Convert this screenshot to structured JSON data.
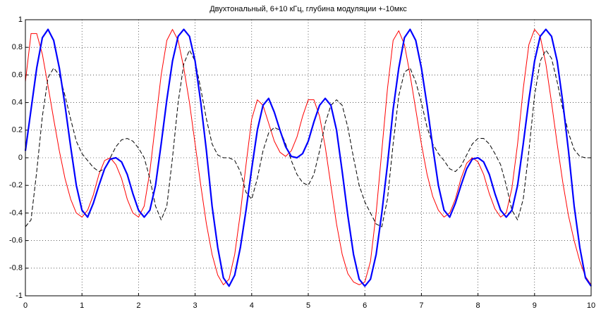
{
  "chart_data": {
    "type": "line",
    "title": "Двухтональный, 6+10 кГц, глубина модуляции +-10мкс",
    "x": [
      0,
      0.1,
      0.2,
      0.3,
      0.4,
      0.5,
      0.6,
      0.7,
      0.8,
      0.9,
      1,
      1.1,
      1.2,
      1.3,
      1.4,
      1.5,
      1.6,
      1.7,
      1.8,
      1.9,
      2,
      2.1,
      2.2,
      2.3,
      2.4,
      2.5,
      2.6,
      2.7,
      2.8,
      2.9,
      3,
      3.1,
      3.2,
      3.3,
      3.4,
      3.5,
      3.6,
      3.7,
      3.8,
      3.9,
      4,
      4.1,
      4.2,
      4.3,
      4.4,
      4.5,
      4.6,
      4.7,
      4.8,
      4.9,
      5,
      5.1,
      5.2,
      5.3,
      5.4,
      5.5,
      5.6,
      5.7,
      5.8,
      5.9,
      6,
      6.1,
      6.2,
      6.3,
      6.4,
      6.5,
      6.6,
      6.7,
      6.8,
      6.9,
      7,
      7.1,
      7.2,
      7.3,
      7.4,
      7.5,
      7.6,
      7.7,
      7.8,
      7.9,
      8,
      8.1,
      8.2,
      8.3,
      8.4,
      8.5,
      8.6,
      8.7,
      8.8,
      8.9,
      9,
      9.1,
      9.2,
      9.3,
      9.4,
      9.5,
      9.6,
      9.7,
      9.8,
      9.9,
      10
    ],
    "series": [
      {
        "color": "#ff0000",
        "width": 1,
        "dash": false,
        "values": [
          0.55,
          0.9,
          0.9,
          0.75,
          0.52,
          0.28,
          0.05,
          -0.15,
          -0.3,
          -0.4,
          -0.43,
          -0.38,
          -0.27,
          -0.12,
          -0.02,
          0.0,
          -0.05,
          -0.15,
          -0.3,
          -0.4,
          -0.43,
          -0.35,
          -0.1,
          0.25,
          0.6,
          0.85,
          0.93,
          0.85,
          0.65,
          0.4,
          0.1,
          -0.2,
          -0.48,
          -0.7,
          -0.85,
          -0.92,
          -0.88,
          -0.7,
          -0.4,
          -0.05,
          0.28,
          0.42,
          0.38,
          0.25,
          0.12,
          0.04,
          0.01,
          0.05,
          0.15,
          0.3,
          0.42,
          0.42,
          0.3,
          0.08,
          -0.2,
          -0.48,
          -0.7,
          -0.84,
          -0.9,
          -0.92,
          -0.9,
          -0.75,
          -0.4,
          0.05,
          0.5,
          0.85,
          0.92,
          0.82,
          0.6,
          0.35,
          0.1,
          -0.12,
          -0.28,
          -0.38,
          -0.43,
          -0.4,
          -0.3,
          -0.15,
          -0.04,
          0.0,
          -0.03,
          -0.12,
          -0.26,
          -0.37,
          -0.43,
          -0.4,
          -0.22,
          0.1,
          0.5,
          0.82,
          0.93,
          0.88,
          0.68,
          0.4,
          0.1,
          -0.18,
          -0.42,
          -0.6,
          -0.75,
          -0.86,
          -0.92
        ]
      },
      {
        "color": "#000000",
        "width": 1,
        "dash": true,
        "values": [
          -0.5,
          -0.45,
          -0.1,
          0.3,
          0.58,
          0.65,
          0.6,
          0.45,
          0.28,
          0.12,
          0.03,
          -0.02,
          -0.07,
          -0.1,
          -0.08,
          0.0,
          0.08,
          0.13,
          0.14,
          0.12,
          0.07,
          0.0,
          -0.15,
          -0.35,
          -0.45,
          -0.35,
          0.0,
          0.4,
          0.68,
          0.78,
          0.7,
          0.5,
          0.28,
          0.1,
          0.02,
          0.0,
          0.0,
          -0.02,
          -0.1,
          -0.25,
          -0.3,
          -0.15,
          0.05,
          0.18,
          0.22,
          0.2,
          0.1,
          -0.02,
          -0.12,
          -0.18,
          -0.2,
          -0.12,
          0.05,
          0.25,
          0.38,
          0.42,
          0.38,
          0.22,
          0.0,
          -0.2,
          -0.32,
          -0.4,
          -0.48,
          -0.5,
          -0.3,
          0.1,
          0.45,
          0.62,
          0.65,
          0.55,
          0.4,
          0.22,
          0.1,
          0.03,
          -0.02,
          -0.08,
          -0.1,
          -0.06,
          0.02,
          0.1,
          0.14,
          0.14,
          0.1,
          0.03,
          -0.05,
          -0.2,
          -0.38,
          -0.45,
          -0.3,
          0.05,
          0.45,
          0.7,
          0.78,
          0.72,
          0.55,
          0.35,
          0.18,
          0.06,
          0.01,
          0.0,
          0.0
        ]
      },
      {
        "color": "#0000ff",
        "width": 2.2,
        "dash": false,
        "values": [
          0.05,
          0.35,
          0.65,
          0.87,
          0.93,
          0.85,
          0.65,
          0.38,
          0.08,
          -0.2,
          -0.38,
          -0.43,
          -0.33,
          -0.2,
          -0.08,
          -0.01,
          0.0,
          -0.03,
          -0.12,
          -0.26,
          -0.38,
          -0.43,
          -0.38,
          -0.2,
          0.1,
          0.42,
          0.7,
          0.88,
          0.93,
          0.88,
          0.7,
          0.4,
          0.05,
          -0.35,
          -0.65,
          -0.87,
          -0.93,
          -0.85,
          -0.65,
          -0.38,
          -0.08,
          0.2,
          0.38,
          0.43,
          0.33,
          0.2,
          0.08,
          0.01,
          0.0,
          0.03,
          0.12,
          0.26,
          0.38,
          0.43,
          0.38,
          0.2,
          -0.1,
          -0.42,
          -0.7,
          -0.88,
          -0.93,
          -0.88,
          -0.7,
          -0.4,
          -0.05,
          0.35,
          0.65,
          0.87,
          0.93,
          0.85,
          0.65,
          0.38,
          0.08,
          -0.2,
          -0.38,
          -0.43,
          -0.33,
          -0.2,
          -0.08,
          -0.01,
          0.0,
          -0.03,
          -0.12,
          -0.26,
          -0.38,
          -0.43,
          -0.38,
          -0.2,
          0.1,
          0.42,
          0.7,
          0.88,
          0.93,
          0.88,
          0.7,
          0.4,
          0.05,
          -0.35,
          -0.65,
          -0.87,
          -0.93
        ]
      }
    ],
    "xlim": [
      0,
      10
    ],
    "xticks": [
      0,
      1,
      2,
      3,
      4,
      5,
      6,
      7,
      8,
      9,
      10
    ],
    "ylim": [
      -1,
      1
    ],
    "yticks": [
      -1,
      -0.8,
      -0.6,
      -0.4,
      -0.2,
      0,
      0.2,
      0.4,
      0.6,
      0.8,
      1
    ],
    "grid": true
  }
}
